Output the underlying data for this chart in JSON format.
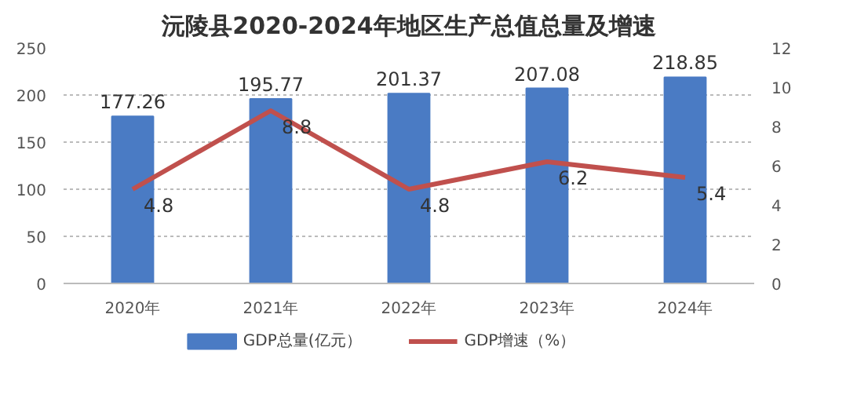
{
  "chart_data": {
    "type": "bar",
    "title": "沅陵县2020-2024年地区生产总值总量及增速",
    "categories": [
      "2020年",
      "2021年",
      "2022年",
      "2023年",
      "2024年"
    ],
    "series": [
      {
        "name": "GDP总量(亿元）",
        "color": "#4a7bc4",
        "values": [
          177.26,
          195.77,
          201.37,
          207.08,
          218.85
        ]
      },
      {
        "name": "GDP增速（%）",
        "type": "line",
        "axis": "y2",
        "color": "#c0504d",
        "values": [
          4.8,
          8.8,
          4.8,
          6.2,
          5.4
        ]
      }
    ],
    "ylim": [
      0,
      250
    ],
    "yticks": [
      0,
      50,
      100,
      150,
      200,
      250
    ],
    "y2lim": [
      0,
      12
    ],
    "y2ticks": [
      0,
      2,
      4,
      6,
      8,
      10,
      12
    ],
    "data_labels": true,
    "grid": "y",
    "legend": "bottom",
    "marker": "none",
    "line_style": "solid"
  }
}
